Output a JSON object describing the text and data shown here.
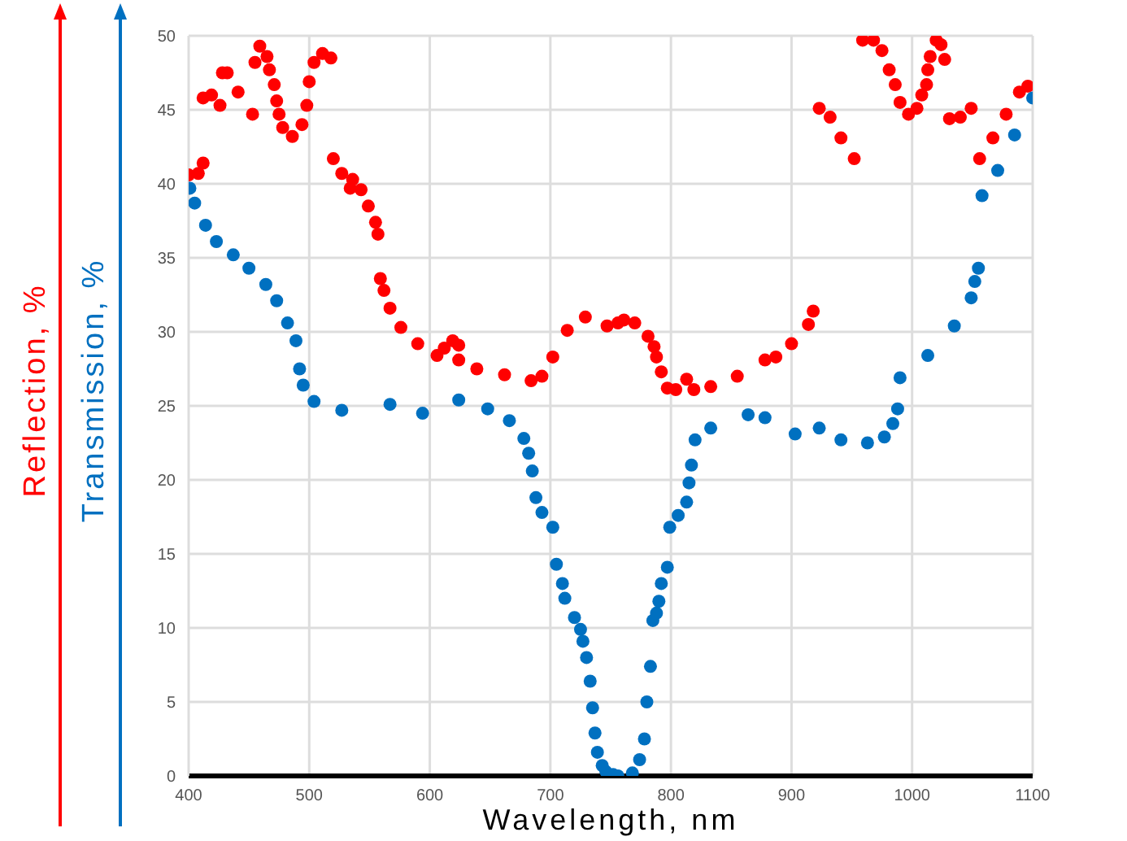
{
  "chart_data": {
    "type": "scatter",
    "xlabel": "Wavelength, nm",
    "xlim": [
      400,
      1100
    ],
    "xticks": [
      400,
      500,
      600,
      700,
      800,
      900,
      1000,
      1100
    ],
    "ylim": [
      0,
      50
    ],
    "yticks": [
      0,
      5,
      10,
      15,
      20,
      25,
      30,
      35,
      40,
      45,
      50
    ],
    "grid": true,
    "marker": "circle",
    "legend": "left",
    "series": [
      {
        "name": "Reflection, %",
        "color": "#ff0000",
        "x": [
          400,
          408,
          412,
          412,
          419,
          426,
          428,
          432,
          441,
          453,
          455,
          459,
          465,
          467,
          471,
          473,
          475,
          478,
          486,
          494,
          498,
          500,
          504,
          511,
          518,
          520,
          527,
          534,
          536,
          543,
          549,
          555,
          557,
          559,
          562,
          567,
          576,
          590,
          606,
          612,
          619,
          624,
          624,
          639,
          662,
          684,
          693,
          702,
          714,
          729,
          747,
          756,
          761,
          770,
          781,
          786,
          788,
          792,
          797,
          804,
          813,
          819,
          833,
          855,
          878,
          887,
          900,
          914,
          918,
          923,
          932,
          941,
          952,
          959,
          968,
          975,
          981,
          986,
          990,
          997,
          1004,
          1008,
          1012,
          1013,
          1015,
          1020,
          1024,
          1027,
          1031,
          1040,
          1049,
          1056,
          1067,
          1078,
          1089,
          1096
        ],
        "values": [
          40.6,
          40.7,
          41.4,
          45.8,
          46,
          45.3,
          47.5,
          47.5,
          46.2,
          44.7,
          48.2,
          49.3,
          48.6,
          47.7,
          46.7,
          45.6,
          44.7,
          43.8,
          43.2,
          44,
          45.3,
          46.9,
          48.2,
          48.8,
          48.5,
          41.7,
          40.7,
          39.7,
          40.3,
          39.6,
          38.5,
          37.4,
          36.6,
          33.6,
          32.8,
          31.6,
          30.3,
          29.2,
          28.4,
          28.9,
          29.4,
          29.1,
          28.1,
          27.5,
          27.1,
          26.7,
          27,
          28.3,
          30.1,
          31,
          30.4,
          30.6,
          30.8,
          30.6,
          29.7,
          29,
          28.3,
          27.3,
          26.2,
          26.1,
          26.8,
          26.1,
          26.3,
          27,
          28.1,
          28.3,
          29.2,
          30.5,
          31.4,
          45.1,
          44.5,
          43.1,
          41.7,
          49.7,
          49.7,
          49,
          47.7,
          46.7,
          45.5,
          44.7,
          45.1,
          46,
          46.7,
          47.7,
          48.6,
          49.7,
          49.4,
          48.4,
          44.4,
          44.5,
          45.1,
          41.7,
          43.1,
          44.7,
          46.2,
          46.6
        ]
      },
      {
        "name": "Transmission, %",
        "color": "#0070c0",
        "x": [
          401,
          405,
          414,
          423,
          437,
          450,
          464,
          473,
          482,
          489,
          492,
          495,
          504,
          527,
          567,
          594,
          624,
          648,
          666,
          678,
          682,
          685,
          688,
          693,
          702,
          705,
          710,
          712,
          720,
          725,
          727,
          730,
          733,
          735,
          737,
          739,
          743,
          746,
          752,
          756,
          768,
          774,
          778,
          780,
          783,
          785,
          788,
          790,
          792,
          797,
          799,
          806,
          813,
          815,
          817,
          820,
          833,
          864,
          878,
          903,
          923,
          941,
          963,
          977,
          984,
          988,
          990,
          1013,
          1035,
          1049,
          1052,
          1055,
          1058,
          1071,
          1085,
          1100
        ],
        "values": [
          39.7,
          38.7,
          37.2,
          36.1,
          35.2,
          34.3,
          33.2,
          32.1,
          30.6,
          29.4,
          27.5,
          26.4,
          25.3,
          24.7,
          25.1,
          24.5,
          25.4,
          24.8,
          24,
          22.8,
          21.8,
          20.6,
          18.8,
          17.8,
          16.8,
          14.3,
          13,
          12,
          10.7,
          9.9,
          9.1,
          8,
          6.4,
          4.6,
          2.9,
          1.6,
          0.7,
          0.3,
          0.1,
          0,
          0.2,
          1.1,
          2.5,
          5,
          7.4,
          10.5,
          11,
          11.8,
          13,
          14.1,
          16.8,
          17.6,
          18.5,
          19.8,
          21,
          22.7,
          23.5,
          24.4,
          24.2,
          23.1,
          23.5,
          22.7,
          22.5,
          22.9,
          23.8,
          24.8,
          26.9,
          28.4,
          30.4,
          32.3,
          33.4,
          34.3,
          39.2,
          40.9,
          43.3,
          45.8
        ]
      }
    ]
  }
}
